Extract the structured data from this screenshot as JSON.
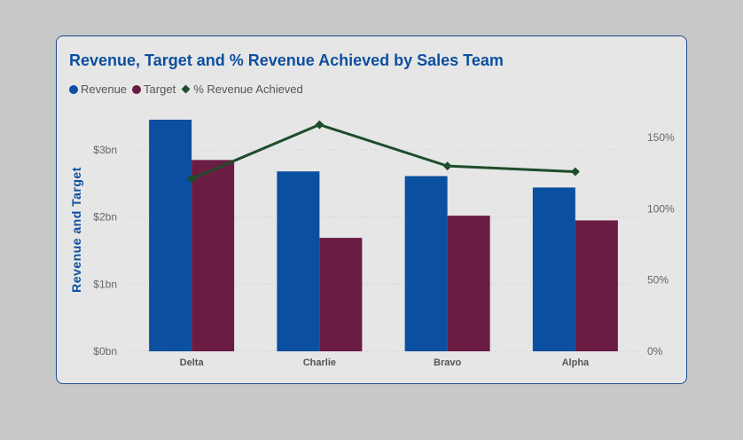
{
  "chart_data": {
    "type": "bar",
    "title": "Revenue, Target and % Revenue Achieved by Sales Team",
    "ylabel": "Revenue and Target",
    "categories": [
      "Delta",
      "Charlie",
      "Bravo",
      "Alpha"
    ],
    "series": [
      {
        "name": "Revenue",
        "type": "bar",
        "axis": "left",
        "color": "#0a4fa0",
        "values": [
          3.45,
          2.68,
          2.61,
          2.44
        ]
      },
      {
        "name": "Target",
        "type": "bar",
        "axis": "left",
        "color": "#6b1c43",
        "values": [
          2.85,
          1.69,
          2.02,
          1.95
        ]
      },
      {
        "name": "% Revenue Achieved",
        "type": "line",
        "axis": "right",
        "color": "#1e4d2b",
        "values": [
          1.21,
          1.59,
          1.3,
          1.26
        ]
      }
    ],
    "left_axis": {
      "ticks": [
        0,
        1,
        2,
        3
      ],
      "tick_labels": [
        "$0bn",
        "$1bn",
        "$2bn",
        "$3bn"
      ],
      "ylim": [
        0,
        3.6
      ]
    },
    "right_axis": {
      "ticks": [
        0,
        0.5,
        1,
        1.5
      ],
      "tick_labels": [
        "0%",
        "50%",
        "100%",
        "150%"
      ],
      "ylim": [
        0,
        1.5
      ]
    },
    "grid": true,
    "legend_position": "top-left"
  }
}
